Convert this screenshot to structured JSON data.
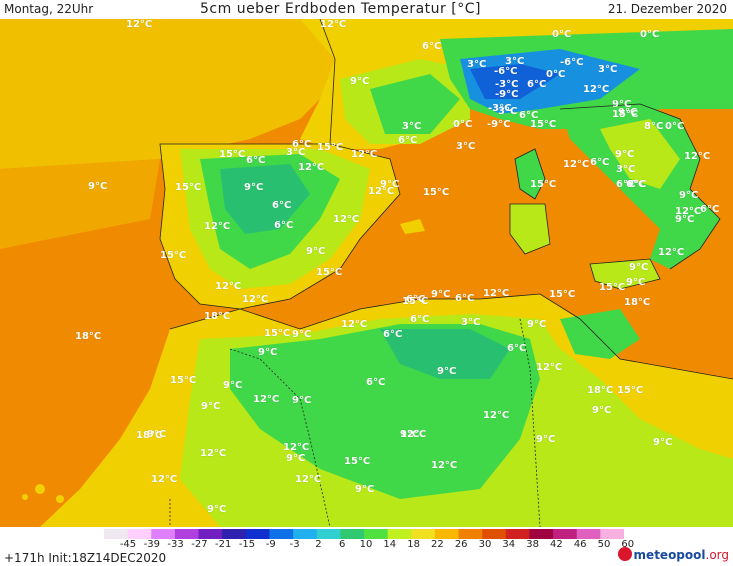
{
  "header": {
    "left": "Montag, 22Uhr",
    "center": "5cm ueber Erdboden Temperatur [°C]",
    "right": "21. Dezember 2020"
  },
  "legend": {
    "ticks": [
      "-45",
      "-39",
      "-33",
      "-27",
      "-21",
      "-15",
      "-9",
      "-3",
      "2",
      "6",
      "10",
      "14",
      "18",
      "22",
      "26",
      "30",
      "34",
      "38",
      "42",
      "46",
      "50",
      "60"
    ],
    "colors": [
      "#f0e8f0",
      "#ffd0ff",
      "#e080ff",
      "#b040e0",
      "#7020c0",
      "#3020b0",
      "#1030d0",
      "#1070e8",
      "#20b0f0",
      "#30d0d0",
      "#30c870",
      "#50e040",
      "#c0f020",
      "#f0e020",
      "#f8b800",
      "#f08000",
      "#e05000",
      "#d02020",
      "#a00040",
      "#c02080",
      "#e060c0",
      "#f8b0e0"
    ],
    "run_info": "+171h Init:18Z14DEC2020",
    "logo_main": "meteopool",
    "logo_suffix": ".org"
  },
  "map_colors": {
    "sea": "#f08a00",
    "sea_warm": "#e87a10",
    "land_yellow": "#f0d000",
    "land_lime": "#b8e818",
    "land_green": "#40d848",
    "land_deep_green": "#28c070",
    "alpine": "#1890e0",
    "alpine_high": "#1060d8",
    "border": "#222222"
  },
  "labels": [
    {
      "text": "12°C"
    },
    {
      "text": "12°C"
    },
    {
      "text": "6°C"
    },
    {
      "text": "0°C"
    },
    {
      "text": "0°C"
    },
    {
      "text": "3°C"
    },
    {
      "text": "-6°C"
    },
    {
      "text": "3°C"
    },
    {
      "text": "-6°C"
    },
    {
      "text": "9°C"
    },
    {
      "text": "0°C"
    },
    {
      "text": "3°C"
    },
    {
      "text": "12°C"
    },
    {
      "text": "-3°C"
    },
    {
      "text": "6°C"
    },
    {
      "text": "-9°C"
    },
    {
      "text": "9°C"
    },
    {
      "text": "9°C"
    },
    {
      "text": "-3°C"
    },
    {
      "text": "3°C"
    },
    {
      "text": "6°C"
    },
    {
      "text": "3°C"
    },
    {
      "text": "0°C"
    },
    {
      "text": "-9°C"
    },
    {
      "text": "15°C"
    },
    {
      "text": "15°C"
    },
    {
      "text": "8°C"
    },
    {
      "text": "0°C"
    },
    {
      "text": "6°C"
    },
    {
      "text": "3°C"
    },
    {
      "text": "6°C"
    },
    {
      "text": "12°C"
    },
    {
      "text": "6°C"
    },
    {
      "text": "9°C"
    },
    {
      "text": "12°C"
    },
    {
      "text": "6°C"
    },
    {
      "text": "3°C"
    },
    {
      "text": "15°C"
    },
    {
      "text": "12°C"
    },
    {
      "text": "15°C"
    },
    {
      "text": "12°C"
    },
    {
      "text": "3°C"
    },
    {
      "text": "6°C"
    },
    {
      "text": "9°C"
    },
    {
      "text": "15°C"
    },
    {
      "text": "9°C"
    },
    {
      "text": "12°C"
    },
    {
      "text": "6°C"
    },
    {
      "text": "9°C"
    },
    {
      "text": "6°C"
    },
    {
      "text": "9°C"
    },
    {
      "text": "12°C"
    },
    {
      "text": "15°C"
    },
    {
      "text": "9°C"
    },
    {
      "text": "15°C"
    },
    {
      "text": "9°C"
    },
    {
      "text": "6°C"
    },
    {
      "text": "12°C"
    },
    {
      "text": "6°C"
    },
    {
      "text": "12°C"
    },
    {
      "text": "9°C"
    },
    {
      "text": "12°C"
    },
    {
      "text": "15°C"
    },
    {
      "text": "9°C"
    },
    {
      "text": "15°C"
    },
    {
      "text": "12°C"
    },
    {
      "text": "12°C"
    },
    {
      "text": "18°C"
    },
    {
      "text": "15°C"
    },
    {
      "text": "9°C"
    },
    {
      "text": "6°C"
    },
    {
      "text": "15°C"
    },
    {
      "text": "9°C"
    },
    {
      "text": "6°C"
    },
    {
      "text": "12°C"
    },
    {
      "text": "15°C"
    },
    {
      "text": "18°C"
    },
    {
      "text": "12°C"
    },
    {
      "text": "18°C"
    },
    {
      "text": "6°C"
    },
    {
      "text": "3°C"
    },
    {
      "text": "15°C"
    },
    {
      "text": "9°C"
    },
    {
      "text": "9°C"
    },
    {
      "text": "6°C"
    },
    {
      "text": "9°C"
    },
    {
      "text": "12°C"
    },
    {
      "text": "6°C"
    },
    {
      "text": "15°C"
    },
    {
      "text": "9°C"
    },
    {
      "text": "6°C"
    },
    {
      "text": "12°C"
    },
    {
      "text": "9°C"
    },
    {
      "text": "9°C"
    },
    {
      "text": "18°C"
    },
    {
      "text": "15°C"
    },
    {
      "text": "9°C"
    },
    {
      "text": "9°C"
    },
    {
      "text": "12°C"
    },
    {
      "text": "9°C"
    },
    {
      "text": "18°C"
    },
    {
      "text": "9°C"
    },
    {
      "text": "12°C"
    },
    {
      "text": "12°C"
    },
    {
      "text": "9°C"
    },
    {
      "text": "9°C"
    },
    {
      "text": "12°C"
    },
    {
      "text": "9°C"
    },
    {
      "text": "15°C"
    },
    {
      "text": "12°C"
    },
    {
      "text": "12°C"
    },
    {
      "text": "12°C"
    },
    {
      "text": "9°C"
    },
    {
      "text": "9°C"
    }
  ]
}
